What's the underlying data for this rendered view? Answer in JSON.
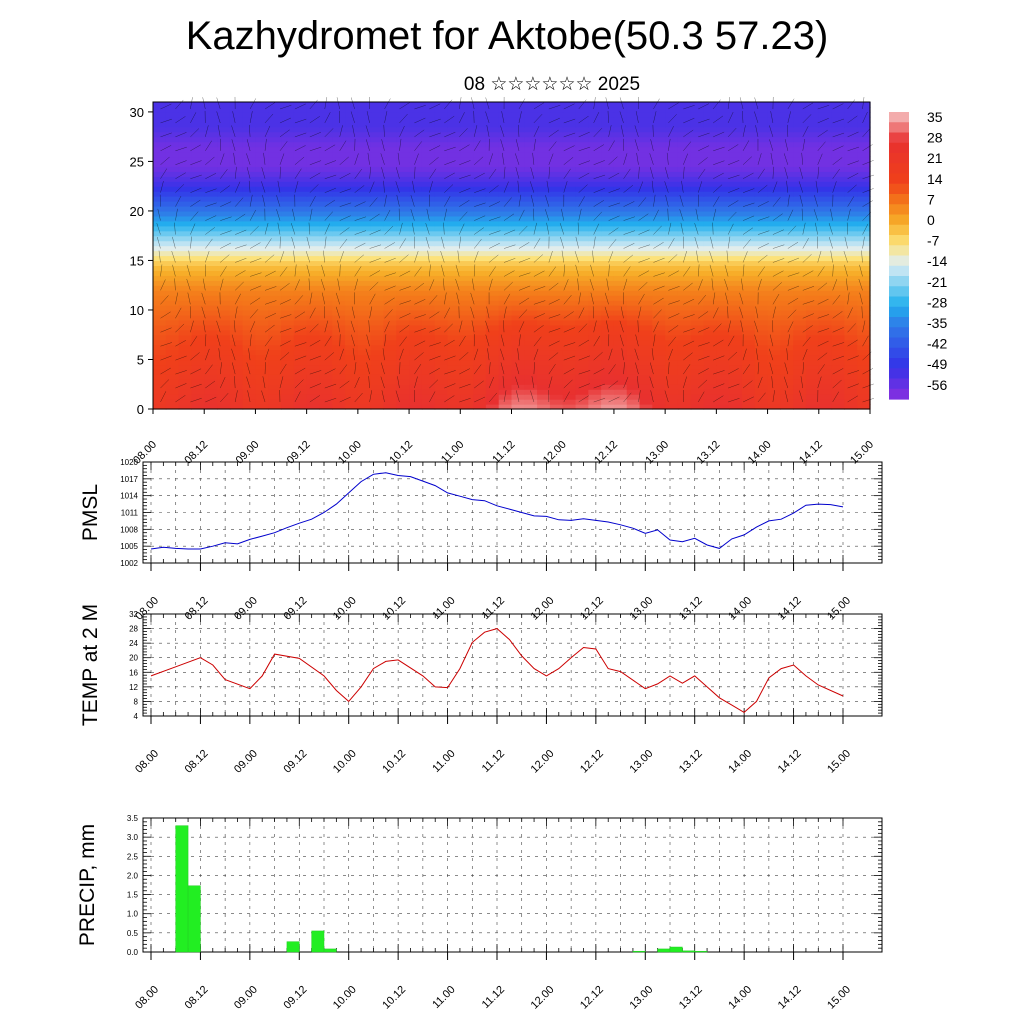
{
  "page": {
    "title": "Kazhydromet for Aktobe(50.3 57.23)",
    "subtitle": "08 ☆☆☆☆☆☆ 2025"
  },
  "chart_data": [
    {
      "id": "cross-section",
      "type": "heatmap",
      "title": "",
      "xlabel": "",
      "ylabel": "",
      "x_ticks": [
        "08.00",
        "08.12",
        "09.00",
        "09.12",
        "10.00",
        "10.12",
        "11.00",
        "11.12",
        "12.00",
        "12.12",
        "13.00",
        "13.12",
        "14.00",
        "14.12",
        "15.00"
      ],
      "ylim": [
        0,
        31
      ],
      "y_ticks": [
        0,
        5,
        10,
        15,
        20,
        25,
        30
      ],
      "colorbar_labels": [
        "35",
        "28",
        "21",
        "14",
        "7",
        "0",
        "-7",
        "-14",
        "-21",
        "-28",
        "-35",
        "-42",
        "-49",
        "-56"
      ],
      "colorbar_values": [
        35,
        28,
        21,
        14,
        7,
        0,
        -7,
        -14,
        -21,
        -28,
        -35,
        -42,
        -49,
        -56
      ],
      "color_stops": [
        {
          "value": 38,
          "color": "#f5c6c6"
        },
        {
          "value": 28,
          "color": "#e83030"
        },
        {
          "value": 14,
          "color": "#f0401a"
        },
        {
          "value": 7,
          "color": "#f47a1a"
        },
        {
          "value": 0,
          "color": "#f7b02a"
        },
        {
          "value": -7,
          "color": "#fce27a"
        },
        {
          "value": -14,
          "color": "#dfeef5"
        },
        {
          "value": -21,
          "color": "#7fd0f0"
        },
        {
          "value": -28,
          "color": "#22b0ee"
        },
        {
          "value": -35,
          "color": "#2f7be8"
        },
        {
          "value": -49,
          "color": "#3333e8"
        },
        {
          "value": -60,
          "color": "#8a30e0"
        }
      ],
      "bands": [
        {
          "y": [
            0,
            4
          ],
          "value": 22
        },
        {
          "y": [
            4,
            10
          ],
          "value": 14
        },
        {
          "y": [
            10,
            15
          ],
          "value": 3
        },
        {
          "y": [
            15,
            17
          ],
          "value": -12
        },
        {
          "y": [
            17,
            20
          ],
          "value": -28
        },
        {
          "y": [
            20,
            24
          ],
          "value": -42
        },
        {
          "y": [
            24,
            27
          ],
          "value": -55
        },
        {
          "y": [
            27,
            31
          ],
          "value": -52
        }
      ],
      "warm_blobs": [
        {
          "x_day": 3.8,
          "y": 4,
          "value": 30
        },
        {
          "x_day": 4.5,
          "y": 3,
          "value": 30
        }
      ],
      "wind_barbs": true
    },
    {
      "id": "pmsl",
      "type": "line",
      "ylabel": "PMSL",
      "ylim": [
        1002,
        1020
      ],
      "y_ticks": [
        "1002",
        "1005",
        "1008",
        "1011",
        "1014",
        "1017",
        "1020"
      ],
      "x_ticks": [
        "08.00",
        "08.12",
        "09.00",
        "09.12",
        "10.00",
        "10.12",
        "11.00",
        "11.12",
        "12.00",
        "12.12",
        "13.00",
        "13.12",
        "14.00",
        "14.12",
        "15.00"
      ],
      "series": [
        {
          "color": "#0000cc",
          "x": [
            0,
            0.125,
            0.25,
            0.375,
            0.5,
            0.625,
            0.75,
            0.875,
            1.0,
            1.125,
            1.25,
            1.375,
            1.5,
            1.625,
            1.75,
            1.875,
            2.0,
            2.125,
            2.25,
            2.375,
            2.5,
            2.625,
            2.75,
            2.875,
            3.0,
            3.125,
            3.25,
            3.375,
            3.5,
            3.625,
            3.75,
            3.875,
            4.0,
            4.125,
            4.25,
            4.375,
            4.5,
            4.625,
            4.75,
            4.875,
            5.0,
            5.125,
            5.25,
            5.375,
            5.5,
            5.625,
            5.75,
            5.875,
            6.0,
            6.125,
            6.25,
            6.375,
            6.5,
            6.625,
            6.75,
            6.875,
            7.0
          ],
          "values": [
            1004.5,
            1004.8,
            1004.6,
            1004.5,
            1004.5,
            1005.0,
            1005.6,
            1005.4,
            1006.2,
            1006.8,
            1007.4,
            1008.3,
            1009.1,
            1009.8,
            1011.0,
            1012.5,
            1014.5,
            1016.5,
            1017.8,
            1018.1,
            1017.6,
            1017.4,
            1016.6,
            1015.8,
            1014.5,
            1013.9,
            1013.3,
            1013.1,
            1012.2,
            1011.6,
            1011.0,
            1010.4,
            1010.3,
            1009.7,
            1009.6,
            1009.9,
            1009.6,
            1009.3,
            1008.8,
            1008.2,
            1007.3,
            1007.9,
            1006.1,
            1005.8,
            1006.4,
            1005.2,
            1004.6,
            1006.3,
            1007.0,
            1008.4,
            1009.5,
            1009.8,
            1010.9,
            1012.3,
            1012.5,
            1012.4,
            1012.0
          ]
        }
      ]
    },
    {
      "id": "temp",
      "type": "line",
      "ylabel": "TEMP at 2 M",
      "ylim": [
        4,
        32
      ],
      "y_ticks": [
        "4",
        "8",
        "12",
        "16",
        "20",
        "24",
        "28",
        "32"
      ],
      "x_ticks": [
        "08.00",
        "08.12",
        "09.00",
        "09.12",
        "10.00",
        "10.12",
        "11.00",
        "11.12",
        "12.00",
        "12.12",
        "13.00",
        "13.12",
        "14.00",
        "14.12",
        "15.00"
      ],
      "series": [
        {
          "color": "#cc0000",
          "x": [
            0,
            0.25,
            0.5,
            0.625,
            0.75,
            1.0,
            1.125,
            1.25,
            1.5,
            1.75,
            1.875,
            2.0,
            2.125,
            2.25,
            2.375,
            2.5,
            2.75,
            2.875,
            3.0,
            3.125,
            3.25,
            3.375,
            3.5,
            3.625,
            3.75,
            3.875,
            4.0,
            4.125,
            4.25,
            4.375,
            4.5,
            4.625,
            4.75,
            5.0,
            5.125,
            5.25,
            5.375,
            5.5,
            5.625,
            5.75,
            5.875,
            6.0,
            6.125,
            6.25,
            6.375,
            6.5,
            6.625,
            6.75,
            7.0
          ],
          "values": [
            15,
            17.5,
            20,
            18,
            14,
            11.5,
            15,
            21,
            19.8,
            15,
            11,
            8,
            12,
            17,
            19,
            19.4,
            15,
            12,
            11.8,
            17,
            24.2,
            27,
            28,
            25,
            20.5,
            17,
            15,
            17,
            20,
            22.8,
            22.4,
            17,
            16.2,
            11.5,
            12.8,
            15,
            13,
            15,
            12,
            9,
            7,
            5,
            8,
            14.5,
            17,
            18,
            15,
            12.5,
            9.5
          ]
        }
      ]
    },
    {
      "id": "precip",
      "type": "bar",
      "ylabel": "PRECIP, mm",
      "ylim": [
        0,
        3.5
      ],
      "y_ticks": [
        "0.0",
        "0.5",
        "1.0",
        "1.5",
        "2.0",
        "2.5",
        "3.0",
        "3.5"
      ],
      "x_ticks": [
        "08.00",
        "08.12",
        "09.00",
        "09.12",
        "10.00",
        "10.12",
        "11.00",
        "11.12",
        "12.00",
        "12.12",
        "13.00",
        "13.12",
        "14.00",
        "14.12",
        "15.00"
      ],
      "bar_width_days": 0.125,
      "bars": [
        {
          "x_start": 0.25,
          "value": 3.3
        },
        {
          "x_start": 0.375,
          "value": 1.73
        },
        {
          "x_start": 1.375,
          "value": 0.27
        },
        {
          "x_start": 1.625,
          "value": 0.55
        },
        {
          "x_start": 1.75,
          "value": 0.08
        },
        {
          "x_start": 4.875,
          "value": 0.02
        },
        {
          "x_start": 5.125,
          "value": 0.08
        },
        {
          "x_start": 5.25,
          "value": 0.13
        },
        {
          "x_start": 5.375,
          "value": 0.03
        },
        {
          "x_start": 5.5,
          "value": 0.02
        }
      ]
    }
  ]
}
